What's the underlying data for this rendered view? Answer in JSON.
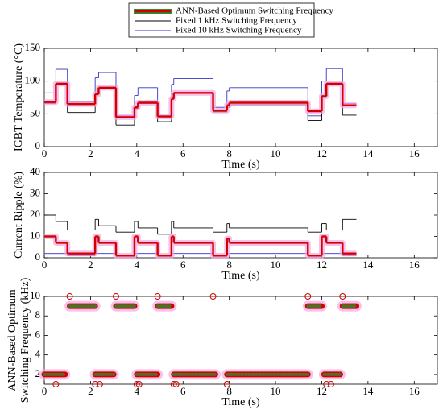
{
  "chart_data": [
    {
      "type": "line",
      "drawstyle": "steps-post",
      "ylabel": [
        "IGBT Temperature (°C)"
      ],
      "xlabel": "Time (s)",
      "legend": "top",
      "xlim": [
        0,
        17
      ],
      "xticks": [
        0,
        2,
        4,
        6,
        8,
        10,
        12,
        14,
        16
      ],
      "ylim": [
        0,
        150
      ],
      "yticks": [
        0,
        50,
        100,
        150
      ],
      "x": [
        0,
        0.5,
        1.0,
        2.2,
        2.35,
        3.1,
        3.9,
        4.05,
        4.9,
        5.5,
        5.6,
        7.3,
        7.9,
        8.0,
        11.4,
        12.0,
        12.2,
        12.9,
        13.5
      ],
      "series": [
        {
          "name": "ANN-Based Optimum Switching Frequency",
          "color": "#d40000",
          "glow": "#f4a6e4",
          "values": [
            68,
            96,
            65,
            80,
            90,
            45,
            60,
            67,
            46,
            73,
            82,
            55,
            63,
            67,
            54,
            77,
            96,
            63,
            63
          ]
        },
        {
          "name": "Fixed 1 kHz Switching Frequency",
          "color": "#000000",
          "values": [
            66,
            97,
            52,
            80,
            90,
            33,
            58,
            66,
            38,
            72,
            82,
            53,
            60,
            64,
            40,
            75,
            97,
            48,
            48
          ]
        },
        {
          "name": "Fixed 10 kHz Switching Frequency",
          "color": "#3333cc",
          "values": [
            82,
            118,
            68,
            105,
            113,
            47,
            78,
            90,
            47,
            95,
            104,
            60,
            85,
            90,
            47,
            100,
            119,
            66,
            66
          ]
        }
      ]
    },
    {
      "type": "line",
      "drawstyle": "steps-post",
      "ylabel": [
        "Current Ripple (%)"
      ],
      "xlabel": "Time (s)",
      "xlim": [
        0,
        17
      ],
      "xticks": [
        0,
        2,
        4,
        6,
        8,
        10,
        12,
        14,
        16
      ],
      "ylim": [
        0,
        40
      ],
      "yticks": [
        0,
        10,
        20,
        30,
        40
      ],
      "x": [
        0,
        0.5,
        1.0,
        2.2,
        2.35,
        3.1,
        3.9,
        4.05,
        4.9,
        5.5,
        5.6,
        7.3,
        7.9,
        8.0,
        11.4,
        12.0,
        12.2,
        12.9,
        13.5
      ],
      "series": [
        {
          "color": "#d40000",
          "glow": "#f4a6e4",
          "values": [
            10,
            7,
            2,
            10,
            7,
            1,
            10,
            7,
            1,
            10,
            7,
            1,
            9,
            7,
            1,
            10,
            7,
            2,
            2
          ]
        },
        {
          "color": "#000000",
          "values": [
            20,
            17,
            13,
            18,
            15,
            12,
            17,
            14,
            11,
            17,
            14,
            12,
            16,
            14,
            12,
            16,
            13,
            18,
            18
          ]
        },
        {
          "color": "#3333cc",
          "values": [
            2,
            2,
            1,
            2,
            2,
            1,
            2,
            2,
            1,
            2,
            2,
            1,
            2,
            2,
            1,
            2,
            2,
            1,
            1
          ]
        }
      ]
    },
    {
      "type": "scatter",
      "ylabel": [
        "ANN-Based Optimum",
        "Switching Frequency (kHz)"
      ],
      "xlabel": "Time (s)",
      "xlim": [
        0,
        17
      ],
      "xticks": [
        0,
        2,
        4,
        6,
        8,
        10,
        12,
        14,
        16
      ],
      "ylim": [
        1,
        10
      ],
      "yticks": [
        2,
        4,
        6,
        8,
        10
      ],
      "segments": {
        "color": "#d40000",
        "dot_color": "#2e8b2e",
        "glow": "#f4a6e4",
        "start": [
          0,
          1.1,
          2.2,
          3.1,
          4.0,
          4.9,
          5.6,
          7.9,
          11.4,
          12.1,
          12.9
        ],
        "end": [
          0.9,
          2.2,
          3.0,
          3.9,
          4.9,
          5.5,
          7.4,
          11.4,
          12.0,
          12.8,
          13.5
        ],
        "values": [
          2,
          9,
          2,
          9,
          2,
          9,
          2,
          2,
          9,
          2,
          9
        ]
      },
      "outliers": {
        "color": "#d40000",
        "x": [
          0.5,
          1.1,
          2.2,
          2.4,
          3.1,
          4.0,
          4.1,
          4.9,
          5.6,
          5.7,
          7.3,
          7.9,
          11.4,
          12.2,
          12.4,
          12.9
        ],
        "values": [
          1,
          10,
          1,
          1,
          10,
          1,
          1,
          10,
          1,
          1,
          10,
          1,
          10,
          1,
          1,
          10
        ]
      }
    }
  ]
}
